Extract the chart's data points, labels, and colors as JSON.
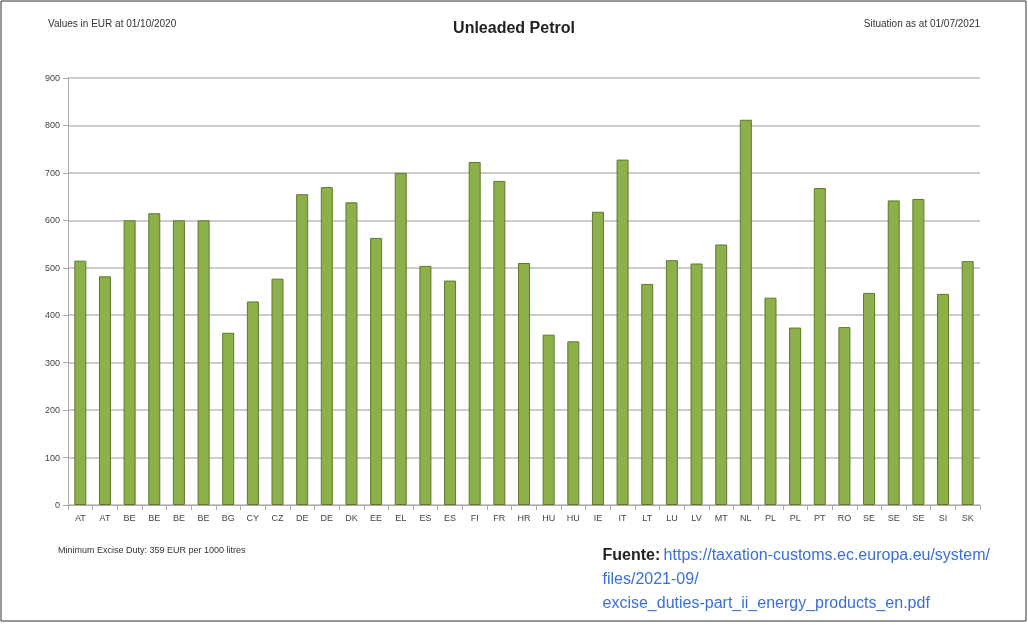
{
  "chart_data": {
    "type": "bar",
    "title": "Unleaded Petrol",
    "categories": [
      "AT",
      "AT",
      "BE",
      "BE",
      "BE",
      "BE",
      "BG",
      "CY",
      "CZ",
      "DE",
      "DE",
      "DK",
      "EE",
      "EL",
      "ES",
      "ES",
      "FI",
      "FR",
      "HR",
      "HU",
      "HU",
      "IE",
      "IT",
      "LT",
      "LU",
      "LV",
      "MT",
      "NL",
      "PL",
      "PL",
      "PT",
      "RO",
      "SE",
      "SE",
      "SE",
      "SI",
      "SK"
    ],
    "values": [
      515,
      482,
      600,
      615,
      600,
      600,
      363,
      429,
      477,
      655,
      670,
      638,
      563,
      700,
      504,
      473,
      723,
      683,
      510,
      359,
      345,
      618,
      728,
      466,
      516,
      509,
      549,
      812,
      437,
      374,
      668,
      375,
      447,
      642,
      645,
      445,
      514
    ],
    "color": "#8db04a",
    "ylim": [
      0,
      900
    ],
    "yticks": [
      0,
      100,
      200,
      300,
      400,
      500,
      600,
      700,
      800,
      900
    ],
    "grid": "y",
    "annotations": [
      "Values in EUR at 01/10/2020",
      "Situation as at 01/07/2021",
      "Minimum Excise Duty: 359 EUR per 1000 litres",
      "Fuente: https://taxation-customs.ec.europa.eu/system/files/2021-09/excise_duties-part_ii_energy_products_en.pdf"
    ]
  }
}
